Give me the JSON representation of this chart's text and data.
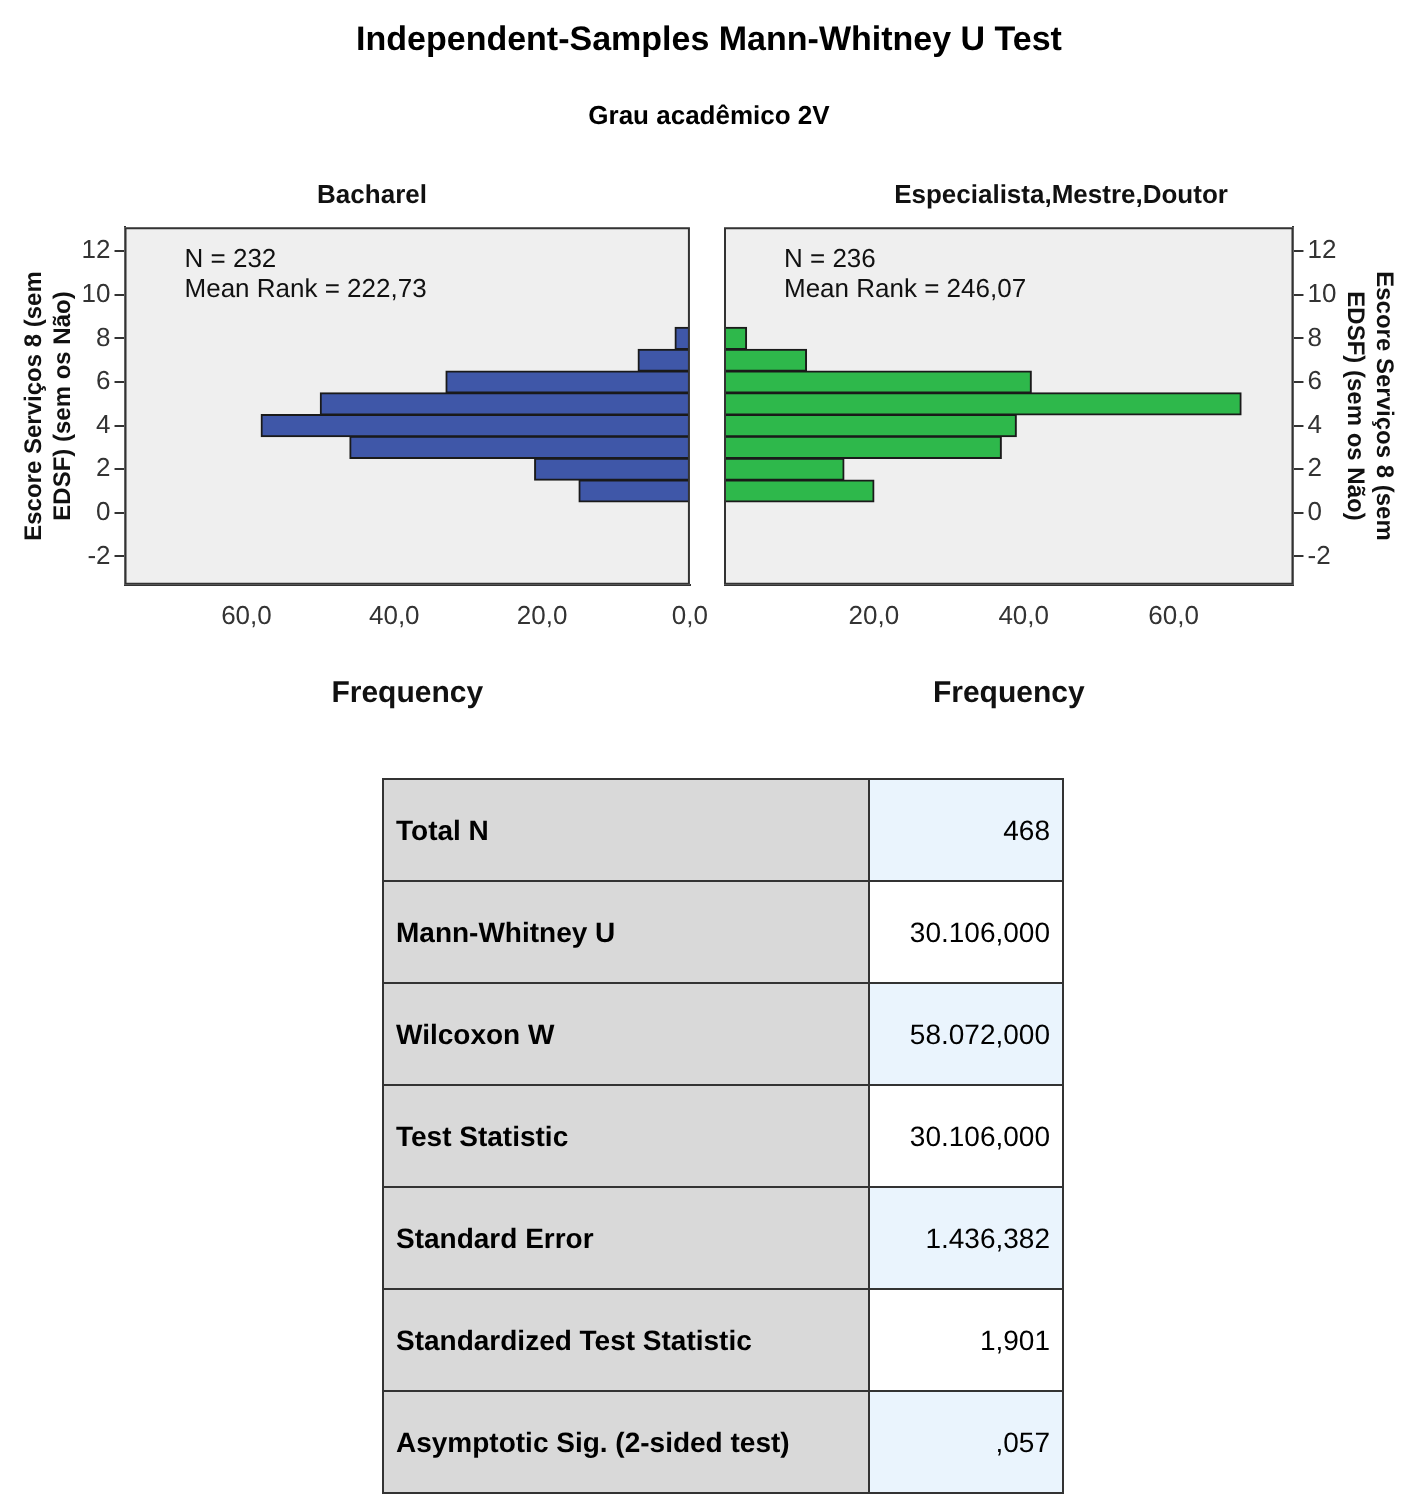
{
  "chart_data": [
    {
      "type": "other",
      "title": "Independent-Samples Mann-Whitney U Test",
      "subtitle": "Grau acadêmico 2V"
    },
    {
      "type": "bar",
      "orientation": "horizontal",
      "title": "Bacharel",
      "xlabel": "Frequency",
      "ylabel": "Escore Serviços 8 (sem EDSF) (sem os Não)",
      "x": [
        1,
        2,
        3,
        4,
        5,
        6,
        7,
        8
      ],
      "color": "#3f57a8",
      "values": [
        15,
        21,
        46,
        58,
        50,
        33,
        7,
        2
      ],
      "xlim": [
        76.5,
        0
      ],
      "xticks": [
        {
          "value": 60,
          "label": "60,0"
        },
        {
          "value": 40,
          "label": "40,0"
        },
        {
          "value": 20,
          "label": "20,0"
        },
        {
          "value": 0,
          "label": "0,0"
        }
      ],
      "ylim": [
        -3.3,
        13.1
      ],
      "yticks": [
        -2,
        0,
        2,
        4,
        6,
        8,
        10,
        12
      ],
      "annotations": [
        "N = 232",
        "Mean Rank = 222,73"
      ],
      "grid": false,
      "legend": false
    },
    {
      "type": "bar",
      "orientation": "horizontal",
      "title": "Especialista,Mestre,Doutor",
      "xlabel": "Frequency",
      "ylabel": "Escore Serviços 8 (sem EDSF) (sem os Não)",
      "x": [
        1,
        2,
        3,
        4,
        5,
        6,
        7,
        8
      ],
      "color": "#2eb84b",
      "values": [
        20,
        16,
        37,
        39,
        69,
        41,
        11,
        3
      ],
      "xlim": [
        0,
        76
      ],
      "xticks": [
        {
          "value": 20,
          "label": "20,0"
        },
        {
          "value": 40,
          "label": "40,0"
        },
        {
          "value": 60,
          "label": "60,0"
        }
      ],
      "ylim": [
        -3.3,
        13.1
      ],
      "yticks": [
        -2,
        0,
        2,
        4,
        6,
        8,
        10,
        12
      ],
      "annotations": [
        "N = 236",
        "Mean Rank = 246,07"
      ],
      "grid": false,
      "legend": false
    },
    {
      "type": "other",
      "categories": [
        "Total N",
        "Mann-Whitney U",
        "Wilcoxon W",
        "Test Statistic",
        "Standard Error",
        "Standardized Test Statistic",
        "Asymptotic Sig. (2-sided test)"
      ],
      "value_labels": [
        "468",
        "30.106,000",
        "58.072,000",
        "30.106,000",
        "1.436,382",
        "1,901",
        ",057"
      ]
    }
  ]
}
